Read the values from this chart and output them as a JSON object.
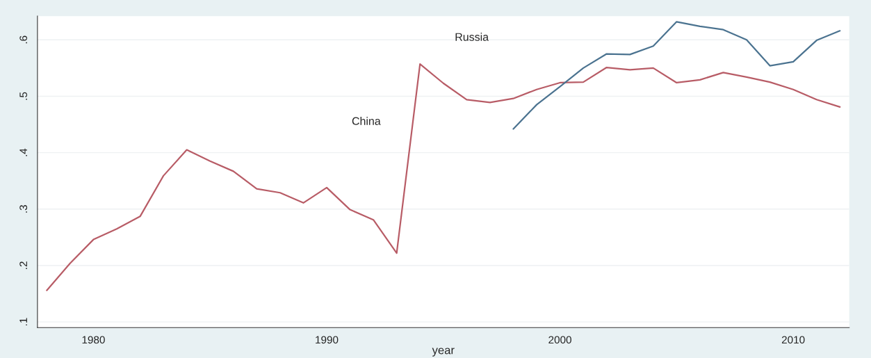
{
  "chart_data": {
    "type": "line",
    "xlabel": "year",
    "xlim": [
      1977.6,
      2012.4
    ],
    "xticks": [
      1980,
      1990,
      2000,
      2010
    ],
    "ylim": [
      0.09,
      0.642
    ],
    "yticks": [
      {
        "value": 0.1,
        "label": ".1"
      },
      {
        "value": 0.2,
        "label": ".2"
      },
      {
        "value": 0.3,
        "label": ".3"
      },
      {
        "value": 0.4,
        "label": ".4"
      },
      {
        "value": 0.5,
        "label": ".5"
      },
      {
        "value": 0.6,
        "label": ".6"
      }
    ],
    "grid": "y",
    "legend": false,
    "marker": "none",
    "line_style": "solid",
    "annotations": [
      "China",
      "Russia"
    ],
    "series": [
      {
        "color": "#b85c66",
        "x": [
          1978,
          1979,
          1980,
          1981,
          1982,
          1983,
          1984,
          1985,
          1986,
          1987,
          1988,
          1989,
          1990,
          1991,
          1992,
          1993,
          1994,
          1995,
          1996,
          1997,
          1998,
          1999,
          2000,
          2001,
          2002,
          2003,
          2004,
          2005,
          2006,
          2007,
          2008,
          2009,
          2010,
          2011,
          2012
        ],
        "values": [
          0.156,
          0.204,
          0.246,
          0.265,
          0.287,
          0.359,
          0.405,
          0.385,
          0.367,
          0.336,
          0.329,
          0.311,
          0.338,
          0.299,
          0.281,
          0.222,
          0.557,
          0.523,
          0.494,
          0.489,
          0.496,
          0.512,
          0.524,
          0.525,
          0.551,
          0.547,
          0.55,
          0.524,
          0.529,
          0.542,
          0.534,
          0.525,
          0.512,
          0.494,
          0.481
        ]
      },
      {
        "color": "#4b7390",
        "x": [
          1998,
          1999,
          2000,
          2001,
          2002,
          2003,
          2004,
          2005,
          2006,
          2007,
          2008,
          2009,
          2010,
          2011,
          2012
        ],
        "values": [
          0.442,
          0.485,
          0.517,
          0.55,
          0.575,
          0.574,
          0.589,
          0.632,
          0.624,
          0.618,
          0.6,
          0.554,
          0.561,
          0.599,
          0.616
        ]
      }
    ]
  }
}
